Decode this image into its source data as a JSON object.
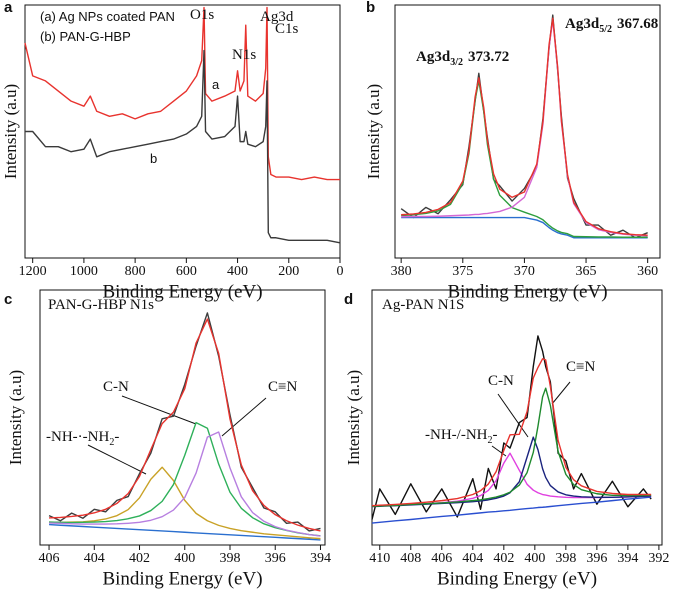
{
  "chart_data": [
    {
      "type": "line",
      "label": "a",
      "xlabel": "Binding Energy (eV)",
      "ylabel": "Intensity (a.u)",
      "xlim": [
        1230,
        0
      ],
      "xticks": [
        1200,
        1000,
        800,
        600,
        400,
        200,
        0
      ],
      "ylim": [
        0,
        100
      ],
      "annotations": [
        {
          "text": "(a) Ag NPs coated PAN"
        },
        {
          "text": "(b) PAN-G-HBP"
        },
        {
          "text": "O1s"
        },
        {
          "text": "N1s"
        },
        {
          "text": "Ag3d"
        },
        {
          "text": "C1s"
        },
        {
          "text": "a"
        },
        {
          "text": "b"
        }
      ],
      "x": [
        1230,
        1200,
        1150,
        1100,
        1050,
        1000,
        975,
        950,
        900,
        850,
        800,
        750,
        700,
        650,
        600,
        560,
        540,
        531,
        525,
        500,
        450,
        410,
        400,
        390,
        375,
        368,
        360,
        330,
        300,
        290,
        285,
        280,
        270,
        250,
        200,
        150,
        100,
        50,
        0
      ],
      "series": [
        {
          "color": "#e8332e",
          "values": [
            85,
            72,
            70,
            66,
            62,
            60,
            64,
            58,
            56,
            57,
            55,
            57,
            58,
            62,
            66,
            72,
            78,
            99,
            65,
            62,
            64,
            66,
            74,
            66,
            70,
            92,
            64,
            62,
            65,
            75,
            99,
            40,
            33,
            32,
            32,
            31,
            32,
            31,
            31
          ]
        },
        {
          "color": "#3a3a3a",
          "values": [
            50,
            50,
            44,
            44,
            42,
            43,
            47,
            40,
            42,
            43,
            44,
            45,
            46,
            47,
            49,
            52,
            56,
            82,
            50,
            47,
            48,
            52,
            64,
            46,
            46,
            50,
            45,
            44,
            46,
            52,
            70,
            10,
            8,
            8,
            7,
            7,
            7,
            7,
            6
          ]
        }
      ]
    },
    {
      "type": "line",
      "label": "b",
      "xlabel": "Binding Energy (eV)",
      "ylabel": "Intensity (a.u)",
      "xlim": [
        380.5,
        359
      ],
      "xticks": [
        380,
        375,
        370,
        365,
        360
      ],
      "ylim": [
        0,
        100
      ],
      "annotations": [
        {
          "text": "Ag3d",
          "sub": "3/2",
          "value": 373.72
        },
        {
          "text": "Ag3d",
          "sub": "5/2",
          "value": 367.68
        }
      ],
      "x": [
        380,
        379,
        378,
        377,
        376,
        375,
        374.5,
        374,
        373.7,
        373.3,
        373,
        372.5,
        372,
        371,
        370,
        369,
        368.5,
        368,
        367.7,
        367.3,
        367,
        366.5,
        366,
        365,
        364,
        363,
        362,
        361,
        360
      ],
      "series": [
        {
          "color": "#3d3d3d",
          "values": [
            19.5,
            16,
            20,
            17.5,
            23,
            29,
            44,
            62,
            73,
            58,
            47.5,
            31,
            28.5,
            22.5,
            27.5,
            36,
            55,
            83,
            96,
            74,
            56,
            31.5,
            23.5,
            13,
            13,
            9,
            11,
            8,
            10
          ]
        },
        {
          "color": "#2a6fcf",
          "values": [
            16,
            16,
            16,
            16,
            16,
            16,
            16,
            16,
            16,
            16,
            16,
            16,
            16,
            16,
            16,
            15,
            14,
            12,
            11,
            10,
            9.5,
            9,
            8,
            8,
            8,
            8,
            8,
            8,
            8
          ]
        },
        {
          "color": "#2e9e3e",
          "values": [
            16.8,
            17.1,
            17.6,
            18.6,
            21.2,
            29.5,
            41.3,
            62.5,
            70,
            58,
            44.8,
            31.2,
            24.8,
            19.9,
            18.1,
            16.4,
            15.1,
            12.9,
            11.8,
            10.7,
            10.1,
            9.6,
            8.5,
            8.4,
            8.3,
            8.3,
            8.2,
            8.2,
            8.2
          ]
        },
        {
          "color": "#d468d4",
          "values": [
            16.3,
            16.4,
            16.4,
            16.5,
            16.7,
            16.9,
            17,
            17.2,
            17.2,
            17.5,
            17.6,
            18,
            18.4,
            20.1,
            24,
            35.8,
            52.8,
            83.5,
            94,
            74.6,
            53.8,
            32.3,
            21.5,
            14,
            11.2,
            10.1,
            9.4,
            9,
            8.8
          ]
        },
        {
          "color": "#e8332e",
          "values": [
            17.1,
            17.4,
            18,
            19.2,
            21.9,
            30.4,
            42.3,
            63.7,
            71.2,
            59.5,
            46.4,
            33.2,
            27.2,
            24,
            26.1,
            37.1,
            53.9,
            84.4,
            94.8,
            75.3,
            54.4,
            32.9,
            22,
            14.4,
            11.6,
            10.4,
            9.6,
            9.2,
            9
          ]
        }
      ]
    },
    {
      "type": "line",
      "label": "c",
      "xlabel": "Binding Energy (eV)",
      "ylabel": "Intensity (a.u)",
      "xlim": [
        406.4,
        393.8
      ],
      "xticks": [
        406,
        404,
        402,
        400,
        398,
        396,
        394
      ],
      "ylim": [
        0,
        100
      ],
      "annotations": [
        {
          "text": "PAN-G-HBP N1s"
        },
        {
          "text": "C-N"
        },
        {
          "text": "C≡N"
        },
        {
          "text": "-NH-·-NH",
          "sub": "2",
          "tail": "-"
        }
      ],
      "x": [
        406,
        405.5,
        405,
        404.5,
        404,
        403.5,
        403,
        402.5,
        402,
        401.5,
        401,
        400.5,
        400,
        399.5,
        399,
        398.5,
        398,
        397.5,
        397,
        396.5,
        396,
        395.5,
        395,
        394.5,
        394
      ],
      "series": [
        {
          "color": "#3d3d3d",
          "values": [
            11.5,
            9.5,
            12.5,
            10.5,
            14,
            13,
            17.5,
            19,
            28,
            36,
            49.5,
            50.5,
            63,
            78,
            91,
            74,
            51,
            30.5,
            22.5,
            14.5,
            13,
            8.5,
            9,
            5.5,
            6.5
          ]
        },
        {
          "color": "#2a6fcf",
          "values": [
            8,
            7.75,
            7.5,
            7.25,
            7,
            6.75,
            6.5,
            6.25,
            6,
            5.75,
            5.5,
            5.25,
            5,
            4.75,
            4.5,
            4.25,
            4,
            3.75,
            3.5,
            3.25,
            3,
            2.75,
            2.5,
            2.25,
            2
          ]
        },
        {
          "color": "#c9a227",
          "values": [
            9,
            8.9,
            9,
            9.1,
            9.5,
            10.2,
            11.5,
            13.9,
            18.5,
            25.8,
            30.5,
            25.3,
            17.5,
            12.4,
            9.5,
            7.7,
            6.5,
            5.6,
            5,
            4.4,
            4,
            3.6,
            3.2,
            2.8,
            2.5
          ]
        },
        {
          "color": "#2eb05a",
          "values": [
            9,
            8.9,
            8.8,
            8.9,
            9,
            9.2,
            9.6,
            10.3,
            11.4,
            13.5,
            17.1,
            23.7,
            35.2,
            48,
            45.8,
            31.7,
            20.7,
            14.4,
            10.7,
            8.3,
            6.8,
            5.7,
            4.8,
            4.1,
            3.6
          ]
        },
        {
          "color": "#b77fe0",
          "values": [
            8.6,
            8.5,
            8.3,
            8.2,
            8.2,
            8.2,
            8.3,
            8.5,
            8.9,
            9.7,
            11.1,
            13.7,
            18.6,
            28.2,
            42.3,
            44.3,
            30.2,
            18.9,
            12.7,
            9.3,
            7.2,
            5.8,
            4.9,
            4.1,
            3.5
          ]
        },
        {
          "color": "#e8332e",
          "values": [
            10.6,
            10.8,
            11.2,
            11.7,
            12.6,
            14,
            16.3,
            20.2,
            26.9,
            37.4,
            47.6,
            52.1,
            61.3,
            79.2,
            88.6,
            75.1,
            49.4,
            31.4,
            21.3,
            15.5,
            11.9,
            9.5,
            7.8,
            6.5,
            5.5
          ]
        }
      ]
    },
    {
      "type": "line",
      "label": "d",
      "xlabel": "Binding Energy (eV)",
      "ylabel": "Intensity (a.u)",
      "xlim": [
        410.5,
        391.8
      ],
      "xticks": [
        410,
        408,
        406,
        404,
        402,
        400,
        398,
        396,
        394,
        392
      ],
      "ylim": [
        0,
        100
      ],
      "annotations": [
        {
          "text": "Ag-PAN N1S"
        },
        {
          "text": "C-N"
        },
        {
          "text": "C≡N"
        },
        {
          "text": "-NH-/-NH",
          "sub": "2",
          "tail": "-"
        }
      ],
      "x": [
        410.5,
        410,
        409,
        408,
        407,
        406,
        405,
        404,
        403.5,
        403,
        402.5,
        402,
        401.6,
        401,
        400.5,
        400.1,
        399.8,
        399.5,
        399.3,
        399,
        398.5,
        398,
        397.5,
        397,
        396,
        395,
        394,
        393,
        392.5
      ],
      "series": [
        {
          "color": "#111111",
          "values": [
            10,
            22,
            12,
            24,
            13,
            22,
            11,
            26,
            14,
            30,
            22,
            40,
            38,
            48,
            50,
            70,
            82,
            76,
            70,
            64,
            36,
            33,
            22,
            28,
            16,
            25,
            15,
            22,
            18
          ]
        },
        {
          "color": "#2a4fd0",
          "values": [
            8.6,
            8.9,
            9.5,
            10,
            10.6,
            11.2,
            11.7,
            12.3,
            12.6,
            12.9,
            13.1,
            13.4,
            13.6,
            14,
            14.3,
            14.5,
            14.7,
            14.8,
            14.9,
            15.1,
            15.4,
            15.7,
            16,
            16.3,
            16.8,
            17.4,
            18,
            18.5,
            18.8
          ]
        },
        {
          "color": "#e040e0",
          "values": [
            15.2,
            15.3,
            15.5,
            15.9,
            16.2,
            16.6,
            17.2,
            18.3,
            19.4,
            21.4,
            25.2,
            32.1,
            36,
            29.3,
            23.8,
            21.5,
            20.5,
            19.8,
            19.6,
            19.2,
            18.9,
            18.7,
            18.6,
            18.6,
            18.6,
            18.7,
            18.8,
            19.1,
            19.1
          ]
        },
        {
          "color": "#1a237e",
          "values": [
            15.1,
            15.2,
            15.4,
            15.7,
            16,
            16.3,
            16.6,
            17,
            17.3,
            17.7,
            18.3,
            19.2,
            20.5,
            24.8,
            34.5,
            42.3,
            37.4,
            29.9,
            26.5,
            23.3,
            20.8,
            19.7,
            19.2,
            18.9,
            18.7,
            18.7,
            18.9,
            19.1,
            19.2
          ]
        },
        {
          "color": "#1f8a2e",
          "values": [
            15.2,
            15.3,
            15.5,
            15.9,
            16.2,
            16.5,
            16.9,
            17.4,
            17.7,
            18.2,
            18.8,
            19.7,
            20.7,
            23.5,
            28.4,
            36.3,
            46.5,
            58.1,
            61.5,
            54.8,
            36.7,
            27.7,
            23.7,
            21.7,
            20.1,
            19.5,
            19.4,
            19.4,
            19.5
          ]
        },
        {
          "color": "#e8332e",
          "values": [
            15.4,
            15.6,
            15.9,
            16.3,
            16.8,
            17.4,
            18.2,
            19.8,
            21.3,
            23.9,
            28.7,
            37.1,
            43.2,
            43.4,
            52.3,
            65.5,
            69.6,
            73,
            72.6,
            62.2,
            41,
            30.5,
            25.6,
            23.2,
            21,
            20.2,
            19.8,
            19.8,
            19.8
          ]
        }
      ]
    }
  ]
}
